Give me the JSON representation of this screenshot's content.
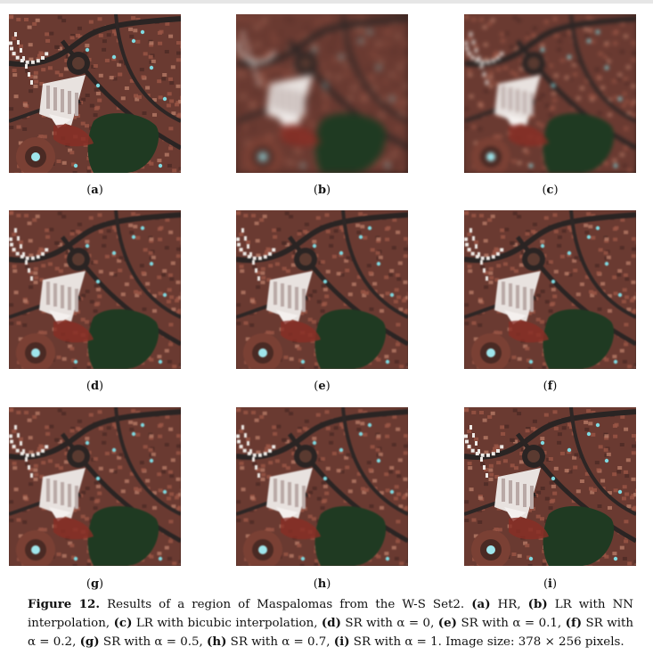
{
  "panels": [
    {
      "label": "a",
      "blur": 0
    },
    {
      "label": "b",
      "blur": 1
    },
    {
      "label": "c",
      "blur": 2
    },
    {
      "label": "d",
      "blur": 3
    },
    {
      "label": "e",
      "blur": 3
    },
    {
      "label": "f",
      "blur": 3
    },
    {
      "label": "g",
      "blur": 3
    },
    {
      "label": "h",
      "blur": 3
    },
    {
      "label": "i",
      "blur": 0
    }
  ],
  "caption": {
    "figure_label": "Figure 12.",
    "text": "Results of a region of Maspalomas from the W-S Set2. (a) HR, (b) LR with NN interpolation, (c) LR with bicubic interpolation, (d) SR with α = 0, (e) SR with α = 0.1, (f) SR with α = 0.2, (g) SR with α = 0.5, (h) SR with α = 0.7, (i) SR with α = 1. Image size: 378 × 256 pixels."
  },
  "colors": {
    "roof_red": "#8f4a3c",
    "vegetation": "#1f3a22",
    "road": "#2a2423",
    "bright_building": "#f0ecea",
    "pool_cyan": "#7fd9e0"
  }
}
